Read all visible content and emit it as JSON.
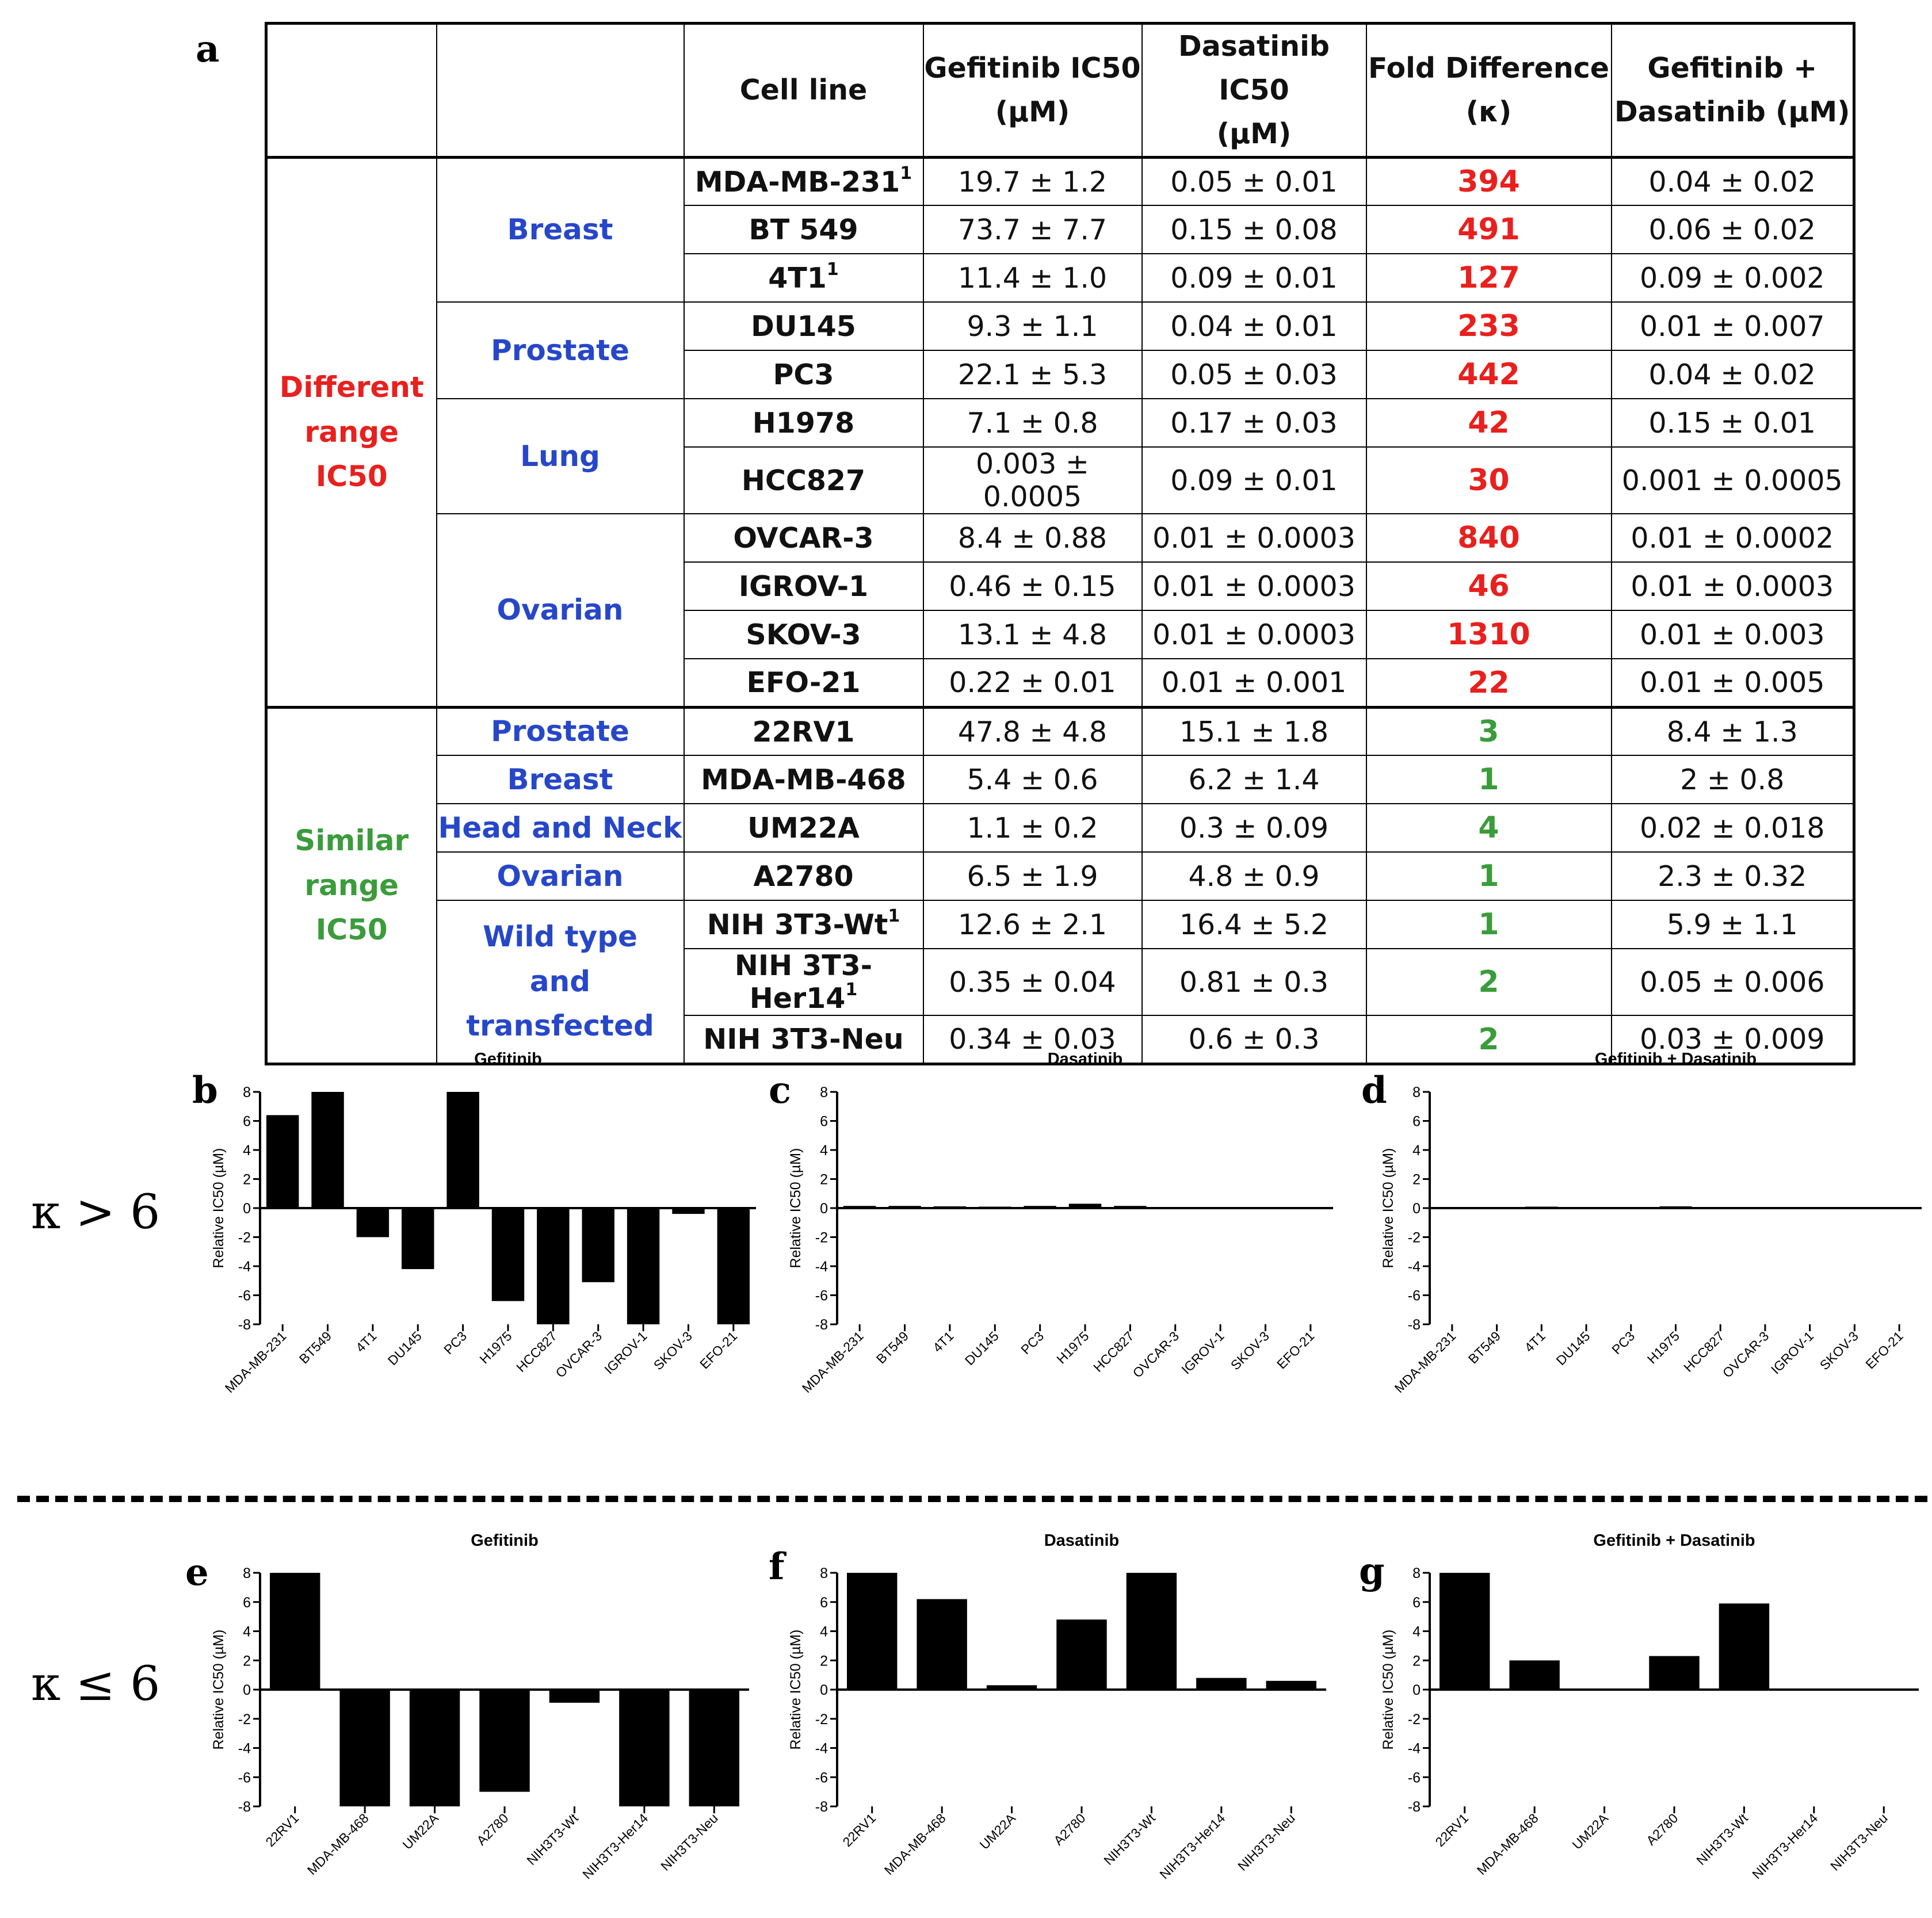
{
  "table": {
    "panel_label": "a",
    "headers": {
      "cell_line": "Cell line",
      "gef_1": "Gefitinib IC50",
      "gef_2": "(µM)",
      "das_1": "Dasatinib IC50",
      "das_2": "(µM)",
      "fold_1": "Fold Difference",
      "fold_2": "(κ)",
      "combo_1": "Gefitinib +",
      "combo_2": "Dasatinib (µM)"
    },
    "sections": [
      {
        "label_1": "Different",
        "label_2": "range IC50",
        "color": "#e8201e",
        "kappa_color": "#e8201e",
        "groups": [
          {
            "label": "Breast",
            "rows": [
              {
                "cell": "MDA-MB-231",
                "sup": "1",
                "gef": "19.7 ± 1.2",
                "das": "0.05 ± 0.01",
                "kappa": "394",
                "combo": "0.04 ± 0.02"
              },
              {
                "cell": "BT 549",
                "sup": "",
                "gef": "73.7 ± 7.7",
                "das": "0.15 ± 0.08",
                "kappa": "491",
                "combo": "0.06 ± 0.02"
              },
              {
                "cell": "4T1",
                "sup": "1",
                "gef": "11.4 ± 1.0",
                "das": "0.09 ± 0.01",
                "kappa": "127",
                "combo": "0.09 ± 0.002"
              }
            ]
          },
          {
            "label": "Prostate",
            "rows": [
              {
                "cell": "DU145",
                "sup": "",
                "gef": "9.3 ± 1.1",
                "das": "0.04 ± 0.01",
                "kappa": "233",
                "combo": "0.01 ± 0.007"
              },
              {
                "cell": "PC3",
                "sup": "",
                "gef": "22.1 ± 5.3",
                "das": "0.05 ± 0.03",
                "kappa": "442",
                "combo": "0.04 ± 0.02"
              }
            ]
          },
          {
            "label": "Lung",
            "rows": [
              {
                "cell": "H1978",
                "sup": "",
                "gef": "7.1 ± 0.8",
                "das": "0.17 ± 0.03",
                "kappa": "42",
                "combo": "0.15 ± 0.01"
              },
              {
                "cell": "HCC827",
                "sup": "",
                "gef": "0.003 ± 0.0005",
                "das": "0.09 ± 0.01",
                "kappa": "30",
                "combo": "0.001 ± 0.0005"
              }
            ]
          },
          {
            "label": "Ovarian",
            "rows": [
              {
                "cell": "OVCAR-3",
                "sup": "",
                "gef": "8.4 ± 0.88",
                "das": "0.01 ± 0.0003",
                "kappa": "840",
                "combo": "0.01 ± 0.0002"
              },
              {
                "cell": "IGROV-1",
                "sup": "",
                "gef": "0.46 ± 0.15",
                "das": "0.01 ± 0.0003",
                "kappa": "46",
                "combo": "0.01 ± 0.0003"
              },
              {
                "cell": "SKOV-3",
                "sup": "",
                "gef": "13.1 ± 4.8",
                "das": "0.01 ± 0.0003",
                "kappa": "1310",
                "combo": "0.01 ± 0.003"
              },
              {
                "cell": "EFO-21",
                "sup": "",
                "gef": "0.22 ± 0.01",
                "das": "0.01 ± 0.001",
                "kappa": "22",
                "combo": "0.01 ± 0.005"
              }
            ]
          }
        ]
      },
      {
        "label_1": "Similar",
        "label_2": "range IC50",
        "color": "#3a9c3a",
        "kappa_color": "#3a9c3a",
        "groups": [
          {
            "label": "Prostate",
            "rows": [
              {
                "cell": "22RV1",
                "sup": "",
                "gef": "47.8 ± 4.8",
                "das": "15.1 ± 1.8",
                "kappa": "3",
                "combo": "8.4 ± 1.3"
              }
            ]
          },
          {
            "label": "Breast",
            "rows": [
              {
                "cell": "MDA-MB-468",
                "sup": "",
                "gef": "5.4 ± 0.6",
                "das": "6.2 ± 1.4",
                "kappa": "1",
                "combo": "2 ± 0.8"
              }
            ]
          },
          {
            "label": "Head and Neck",
            "rows": [
              {
                "cell": "UM22A",
                "sup": "",
                "gef": "1.1 ± 0.2",
                "das": "0.3 ± 0.09",
                "kappa": "4",
                "combo": "0.02 ± 0.018"
              }
            ]
          },
          {
            "label": "Ovarian",
            "rows": [
              {
                "cell": "A2780",
                "sup": "",
                "gef": "6.5 ± 1.9",
                "das": "4.8 ± 0.9",
                "kappa": "1",
                "combo": "2.3 ± 0.32"
              }
            ]
          },
          {
            "label": "Wild type",
            "label_2": "and transfected",
            "rows": [
              {
                "cell": "NIH 3T3-Wt",
                "sup": "1",
                "gef": "12.6 ± 2.1",
                "das": "16.4 ± 5.2",
                "kappa": "1",
                "combo": "5.9 ± 1.1"
              },
              {
                "cell": "NIH 3T3-Her14",
                "sup": "1",
                "gef": "0.35 ± 0.04",
                "das": "0.81 ± 0.3",
                "kappa": "2",
                "combo": "0.05 ± 0.006"
              },
              {
                "cell": "NIH 3T3-Neu",
                "sup": "",
                "gef": "0.34 ± 0.03",
                "das": "0.6 ± 0.3",
                "kappa": "2",
                "combo": "0.03 ± 0.009"
              }
            ]
          }
        ]
      }
    ]
  },
  "row_labels": {
    "top": "κ > 6",
    "bottom": "κ ≤ 6"
  },
  "chart_data": [
    {
      "panel": "b",
      "type": "bar",
      "title": "Gefitinib",
      "ylabel": "Relative IC50 (µM)",
      "ylim": [
        -8,
        8
      ],
      "yticks": [
        8,
        6,
        4,
        2,
        0,
        -2,
        -4,
        -6,
        -8
      ],
      "categories": [
        "MDA-MB-231",
        "BT549",
        "4T1",
        "DU145",
        "PC3",
        "H1975",
        "HCC827",
        "OVCAR-3",
        "IGROV-1",
        "SKOV-3",
        "EFO-21"
      ],
      "values": [
        6.4,
        8,
        -2,
        -4.2,
        8,
        -6.4,
        -8,
        -5.1,
        -8,
        -0.4,
        -8
      ]
    },
    {
      "panel": "c",
      "type": "bar",
      "title": "Dasatinib",
      "ylabel": "Relative IC50 (µM)",
      "ylim": [
        -8,
        8
      ],
      "yticks": [
        8,
        6,
        4,
        2,
        0,
        -2,
        -4,
        -6,
        -8
      ],
      "categories": [
        "MDA-MB-231",
        "BT549",
        "4T1",
        "DU145",
        "PC3",
        "H1975",
        "HCC827",
        "OVCAR-3",
        "IGROV-1",
        "SKOV-3",
        "EFO-21"
      ],
      "values": [
        0.15,
        0.15,
        0.12,
        0.1,
        0.15,
        0.3,
        0.15,
        0.02,
        0.02,
        0.02,
        0.02
      ]
    },
    {
      "panel": "d",
      "type": "bar",
      "title": "Gefitinib + Dasatinib",
      "ylabel": "Relative IC50 (µM)",
      "ylim": [
        -8,
        8
      ],
      "yticks": [
        8,
        6,
        4,
        2,
        0,
        -2,
        -4,
        -6,
        -8
      ],
      "categories": [
        "MDA-MB-231",
        "BT549",
        "4T1",
        "DU145",
        "PC3",
        "H1975",
        "HCC827",
        "OVCAR-3",
        "IGROV-1",
        "SKOV-3",
        "EFO-21"
      ],
      "values": [
        0.02,
        0.02,
        0.1,
        0.02,
        0.02,
        0.12,
        0.02,
        0.02,
        0.02,
        0.02,
        0.02
      ]
    },
    {
      "panel": "e",
      "type": "bar",
      "title": "Gefitinib",
      "ylabel": "Relative IC50 (µM)",
      "ylim": [
        -8,
        8
      ],
      "yticks": [
        8,
        6,
        4,
        2,
        0,
        -2,
        -4,
        -6,
        -8
      ],
      "categories": [
        "22RV1",
        "MDA-MB-468",
        "UM22A",
        "A2780",
        "NIH3T3-Wt",
        "NIH3T3-Her14",
        "NIH3T3-Neu"
      ],
      "values": [
        8,
        -8,
        -8,
        -7,
        -0.9,
        -8,
        -8
      ]
    },
    {
      "panel": "f",
      "type": "bar",
      "title": "Dasatinib",
      "ylabel": "Relative IC50 (µM)",
      "ylim": [
        -8,
        8
      ],
      "yticks": [
        8,
        6,
        4,
        2,
        0,
        -2,
        -4,
        -6,
        -8
      ],
      "categories": [
        "22RV1",
        "MDA-MB-468",
        "UM22A",
        "A2780",
        "NIH3T3-Wt",
        "NIH3T3-Her14",
        "NIH3T3-Neu"
      ],
      "values": [
        8,
        6.2,
        0.3,
        4.8,
        8,
        0.8,
        0.6
      ]
    },
    {
      "panel": "g",
      "type": "bar",
      "title": "Gefitinib + Dasatinib",
      "ylabel": "Relative IC50 (µM)",
      "ylim": [
        -8,
        8
      ],
      "yticks": [
        8,
        6,
        4,
        2,
        0,
        -2,
        -4,
        -6,
        -8
      ],
      "categories": [
        "22RV1",
        "MDA-MB-468",
        "UM22A",
        "A2780",
        "NIH3T3-Wt",
        "NIH3T3-Her14",
        "NIH3T3-Neu"
      ],
      "values": [
        8,
        2,
        0.02,
        2.3,
        5.9,
        0.05,
        0.03
      ]
    }
  ]
}
